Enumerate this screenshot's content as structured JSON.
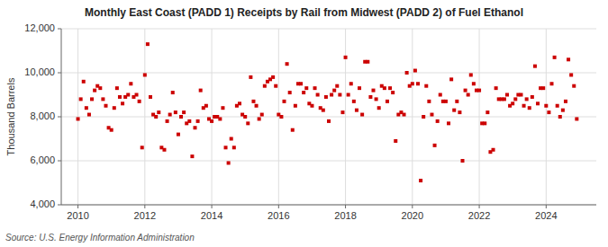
{
  "chart_data": {
    "type": "scatter",
    "title": "Monthly East Coast (PADD 1) Receipts by Rail from Midwest (PADD 2) of Fuel Ethanol",
    "ylabel": "Thousand Barrels",
    "source": "Source: U.S. Energy Information Administration",
    "color": "#cc0000",
    "marker": "square",
    "grid": true,
    "xlim": [
      2009.5,
      2025.5
    ],
    "xticks": [
      2010,
      2012,
      2014,
      2016,
      2018,
      2020,
      2022,
      2024
    ],
    "ylim": [
      4000,
      12000
    ],
    "yticks": [
      {
        "value": 4000,
        "label": "4,000"
      },
      {
        "value": 6000,
        "label": "6,000"
      },
      {
        "value": 8000,
        "label": "8,000"
      },
      {
        "value": 10000,
        "label": "10,000"
      },
      {
        "value": 12000,
        "label": "12,000"
      }
    ],
    "x": [
      2010,
      2010.0833333333333,
      2010.1666666666667,
      2010.25,
      2010.3333333333333,
      2010.4166666666667,
      2010.5,
      2010.5833333333333,
      2010.6666666666667,
      2010.75,
      2010.8333333333333,
      2010.9166666666667,
      2011,
      2011.0833333333333,
      2011.1666666666667,
      2011.25,
      2011.3333333333333,
      2011.4166666666667,
      2011.5,
      2011.5833333333333,
      2011.6666666666667,
      2011.75,
      2011.8333333333333,
      2011.9166666666667,
      2012,
      2012.0833333333333,
      2012.1666666666667,
      2012.25,
      2012.3333333333333,
      2012.4166666666667,
      2012.5,
      2012.5833333333333,
      2012.6666666666667,
      2012.75,
      2012.8333333333333,
      2012.9166666666667,
      2013,
      2013.0833333333333,
      2013.1666666666667,
      2013.25,
      2013.3333333333333,
      2013.4166666666667,
      2013.5,
      2013.5833333333333,
      2013.6666666666667,
      2013.75,
      2013.8333333333333,
      2013.9166666666667,
      2014,
      2014.0833333333333,
      2014.1666666666667,
      2014.25,
      2014.3333333333333,
      2014.4166666666667,
      2014.5,
      2014.5833333333333,
      2014.6666666666667,
      2014.75,
      2014.8333333333333,
      2014.9166666666667,
      2015,
      2015.0833333333333,
      2015.1666666666667,
      2015.25,
      2015.3333333333333,
      2015.4166666666667,
      2015.5,
      2015.5833333333333,
      2015.6666666666667,
      2015.75,
      2015.8333333333333,
      2015.9166666666667,
      2016,
      2016.0833333333333,
      2016.1666666666667,
      2016.25,
      2016.3333333333333,
      2016.4166666666667,
      2016.5,
      2016.5833333333333,
      2016.6666666666667,
      2016.75,
      2016.8333333333333,
      2016.9166666666667,
      2017,
      2017.0833333333333,
      2017.1666666666667,
      2017.25,
      2017.3333333333333,
      2017.4166666666667,
      2017.5,
      2017.5833333333333,
      2017.6666666666667,
      2017.75,
      2017.8333333333333,
      2017.9166666666667,
      2018,
      2018.0833333333333,
      2018.1666666666667,
      2018.25,
      2018.3333333333333,
      2018.4166666666667,
      2018.5,
      2018.5833333333333,
      2018.6666666666667,
      2018.75,
      2018.8333333333333,
      2018.9166666666667,
      2019,
      2019.0833333333333,
      2019.1666666666667,
      2019.25,
      2019.3333333333333,
      2019.4166666666667,
      2019.5,
      2019.5833333333333,
      2019.6666666666667,
      2019.75,
      2019.8333333333333,
      2019.9166666666667,
      2020,
      2020.0833333333333,
      2020.1666666666667,
      2020.25,
      2020.3333333333333,
      2020.4166666666667,
      2020.5,
      2020.5833333333333,
      2020.6666666666667,
      2020.75,
      2020.8333333333333,
      2020.9166666666667,
      2021,
      2021.0833333333333,
      2021.1666666666667,
      2021.25,
      2021.3333333333333,
      2021.4166666666667,
      2021.5,
      2021.5833333333333,
      2021.6666666666667,
      2021.75,
      2021.8333333333333,
      2021.9166666666667,
      2022,
      2022.0833333333333,
      2022.1666666666667,
      2022.25,
      2022.3333333333333,
      2022.4166666666667,
      2022.5,
      2022.5833333333333,
      2022.6666666666667,
      2022.75,
      2022.8333333333333,
      2022.9166666666667,
      2023,
      2023.0833333333333,
      2023.1666666666667,
      2023.25,
      2023.3333333333333,
      2023.4166666666667,
      2023.5,
      2023.5833333333333,
      2023.6666666666667,
      2023.75,
      2023.8333333333333,
      2023.9166666666667,
      2024,
      2024.0833333333333,
      2024.1666666666667,
      2024.25,
      2024.3333333333333,
      2024.4166666666667,
      2024.5,
      2024.5833333333333,
      2024.6666666666667,
      2024.75,
      2024.8333333333333,
      2024.9166666666667
    ],
    "values": [
      7900,
      8800,
      9600,
      8400,
      8100,
      8800,
      9200,
      9400,
      9300,
      8800,
      8500,
      7500,
      7400,
      8400,
      9300,
      8900,
      8600,
      8900,
      9000,
      9500,
      8900,
      9000,
      8700,
      6600,
      9900,
      11300,
      8900,
      8100,
      8000,
      8200,
      6600,
      6500,
      7800,
      8100,
      9100,
      8200,
      7200,
      8000,
      8200,
      7700,
      7800,
      6200,
      7500,
      7800,
      9200,
      8400,
      8500,
      7900,
      7800,
      8000,
      8000,
      7900,
      8400,
      6600,
      5900,
      7000,
      6600,
      8500,
      8600,
      8100,
      8000,
      7700,
      9800,
      8700,
      8500,
      7900,
      8100,
      9400,
      9600,
      9700,
      9800,
      9400,
      8100,
      8000,
      8700,
      10400,
      9100,
      7400,
      8500,
      9500,
      9500,
      9100,
      9300,
      8600,
      8500,
      9300,
      9000,
      8400,
      8300,
      8900,
      7800,
      9000,
      9200,
      9400,
      9000,
      8200,
      10700,
      9000,
      9500,
      8700,
      8300,
      9300,
      8100,
      10500,
      10500,
      8900,
      9200,
      8800,
      8400,
      9400,
      9300,
      8700,
      9300,
      9100,
      6900,
      8100,
      8200,
      8100,
      10000,
      9400,
      9500,
      10100,
      9500,
      5100,
      8000,
      9400,
      8700,
      8100,
      6700,
      7800,
      9000,
      8700,
      8700,
      7700,
      9700,
      8300,
      8700,
      8200,
      6000,
      9200,
      9000,
      9900,
      9500,
      9200,
      9200,
      7700,
      7700,
      8200,
      6400,
      6500,
      9300,
      8800,
      8800,
      8800,
      9000,
      8500,
      8600,
      8800,
      9000,
      9000,
      8500,
      8800,
      8400,
      8900,
      10300,
      8600,
      9300,
      9300,
      8500,
      8200,
      9500,
      10700,
      8500,
      8000,
      8300,
      8700,
      10600,
      9900,
      9400,
      7900
    ]
  }
}
